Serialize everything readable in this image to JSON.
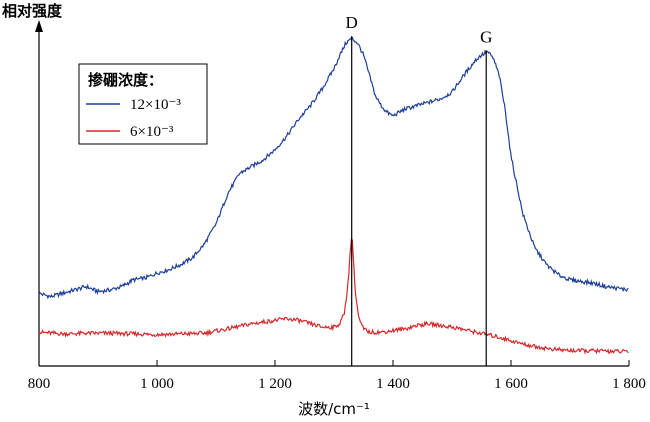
{
  "chart_data": {
    "type": "line",
    "ylabel": "相对强度",
    "xlabel": "波数/cm⁻¹",
    "xlim": [
      800,
      1800
    ],
    "x_ticks": [
      800,
      1000,
      1200,
      1400,
      1600,
      1800
    ],
    "x_tick_labels": [
      "800",
      "1 000",
      "1 200",
      "1 400",
      "1 600",
      "1 800"
    ],
    "y_ticks_shown": false,
    "grid": false,
    "legend": {
      "title": "掺硼浓度：",
      "placement": "top-left"
    },
    "annotations": [
      {
        "label": "D",
        "x": 1330
      },
      {
        "label": "G",
        "x": 1558
      }
    ],
    "series": [
      {
        "name": "12×10⁻³",
        "color": "#1f3f9a",
        "x": [
          800,
          820,
          840,
          860,
          880,
          900,
          920,
          940,
          960,
          980,
          1000,
          1020,
          1040,
          1060,
          1080,
          1100,
          1120,
          1140,
          1160,
          1180,
          1200,
          1220,
          1240,
          1260,
          1280,
          1300,
          1310,
          1320,
          1330,
          1340,
          1350,
          1360,
          1370,
          1380,
          1390,
          1400,
          1410,
          1420,
          1440,
          1460,
          1480,
          1500,
          1520,
          1540,
          1550,
          1560,
          1570,
          1580,
          1590,
          1600,
          1620,
          1640,
          1660,
          1680,
          1700,
          1720,
          1740,
          1760,
          1780,
          1800
        ],
        "values": [
          0.215,
          0.205,
          0.215,
          0.225,
          0.235,
          0.22,
          0.225,
          0.235,
          0.255,
          0.26,
          0.275,
          0.285,
          0.3,
          0.32,
          0.36,
          0.42,
          0.51,
          0.57,
          0.59,
          0.61,
          0.64,
          0.68,
          0.73,
          0.77,
          0.82,
          0.88,
          0.92,
          0.955,
          0.97,
          0.955,
          0.92,
          0.86,
          0.8,
          0.77,
          0.75,
          0.74,
          0.75,
          0.76,
          0.77,
          0.78,
          0.79,
          0.81,
          0.86,
          0.905,
          0.92,
          0.93,
          0.91,
          0.86,
          0.76,
          0.62,
          0.45,
          0.35,
          0.3,
          0.27,
          0.255,
          0.25,
          0.245,
          0.235,
          0.23,
          0.225
        ]
      },
      {
        "name": "6×10⁻³",
        "color": "#d42a2a",
        "x": [
          800,
          840,
          880,
          920,
          960,
          1000,
          1040,
          1080,
          1120,
          1160,
          1200,
          1220,
          1240,
          1260,
          1280,
          1300,
          1310,
          1318,
          1324,
          1328,
          1330,
          1332,
          1336,
          1342,
          1350,
          1360,
          1380,
          1400,
          1420,
          1440,
          1460,
          1480,
          1500,
          1520,
          1540,
          1560,
          1580,
          1600,
          1620,
          1640,
          1660,
          1680,
          1700,
          1720,
          1740,
          1760,
          1780,
          1800
        ],
        "values": [
          0.1,
          0.095,
          0.097,
          0.097,
          0.095,
          0.093,
          0.095,
          0.097,
          0.11,
          0.125,
          0.135,
          0.14,
          0.135,
          0.125,
          0.115,
          0.115,
          0.125,
          0.16,
          0.25,
          0.35,
          0.385,
          0.35,
          0.22,
          0.14,
          0.11,
          0.1,
          0.1,
          0.105,
          0.11,
          0.12,
          0.125,
          0.12,
          0.115,
          0.108,
          0.1,
          0.093,
          0.085,
          0.075,
          0.065,
          0.058,
          0.052,
          0.048,
          0.046,
          0.045,
          0.045,
          0.044,
          0.043,
          0.043
        ]
      }
    ]
  }
}
